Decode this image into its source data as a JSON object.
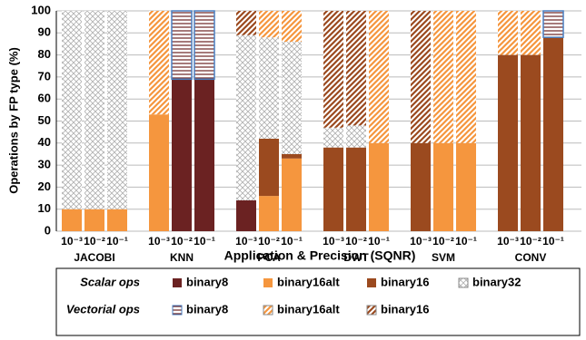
{
  "chart_data": {
    "type": "stacked-bar",
    "ylabel": "Operations  by FP type (%)",
    "xlabel": "Application & Precision (SQNR)",
    "groups": [
      "JACOBI",
      "KNN",
      "PCA",
      "DWT",
      "SVM",
      "CONV"
    ],
    "categories": [
      "10⁻³",
      "10⁻²",
      "10⁻¹",
      "10⁻³",
      "10⁻²",
      "10⁻¹",
      "10⁻³",
      "10⁻²",
      "10⁻¹",
      "10⁻³",
      "10⁻²",
      "10⁻¹",
      "10⁻³",
      "10⁻²",
      "10⁻¹",
      "10⁻³",
      "10⁻²",
      "10⁻¹"
    ],
    "ylim": [
      0,
      100
    ],
    "yticks": [
      0,
      10,
      20,
      30,
      40,
      50,
      60,
      70,
      80,
      90,
      100
    ],
    "grid": true,
    "series_groups": [
      {
        "name": "Scalar ops",
        "series": [
          {
            "name": "binary8",
            "color": "#6b2222",
            "pattern": "solid",
            "values": [
              0,
              0,
              0,
              0,
              69,
              69,
              14,
              0,
              0,
              0,
              0,
              0,
              0,
              0,
              0,
              0,
              0,
              0
            ]
          },
          {
            "name": "binary16alt",
            "color": "#f5963e",
            "pattern": "solid",
            "values": [
              10,
              10,
              10,
              53,
              0,
              0,
              0,
              16,
              33,
              0,
              0,
              40,
              0,
              40,
              40,
              0,
              0,
              0
            ]
          },
          {
            "name": "binary16",
            "color": "#9b4a1f",
            "pattern": "solid",
            "values": [
              0,
              0,
              0,
              0,
              0,
              0,
              0,
              26,
              2,
              38,
              38,
              0,
              40,
              0,
              0,
              80,
              80,
              88
            ]
          },
          {
            "name": "binary32",
            "color": "#b0b0b0",
            "pattern": "cross",
            "values": [
              90,
              90,
              90,
              0,
              0,
              0,
              75,
              46,
              51,
              9,
              10,
              0,
              0,
              0,
              0,
              0,
              0,
              0
            ]
          }
        ]
      },
      {
        "name": "Vectorial ops",
        "series": [
          {
            "name": "binary8",
            "color": "#4a7fc1",
            "pattern": "hline",
            "values": [
              0,
              0,
              0,
              0,
              31,
              31,
              0,
              0,
              0,
              0,
              0,
              0,
              0,
              0,
              0,
              0,
              0,
              12
            ]
          },
          {
            "name": "binary16alt",
            "color": "#f5963e",
            "pattern": "diag",
            "values": [
              0,
              0,
              0,
              47,
              0,
              0,
              0,
              12,
              14,
              0,
              0,
              60,
              0,
              60,
              60,
              20,
              20,
              0
            ]
          },
          {
            "name": "binary16",
            "color": "#9b4a1f",
            "pattern": "diag",
            "values": [
              0,
              0,
              0,
              0,
              0,
              0,
              11,
              0,
              0,
              53,
              52,
              0,
              60,
              0,
              0,
              0,
              0,
              0
            ]
          }
        ]
      }
    ]
  }
}
